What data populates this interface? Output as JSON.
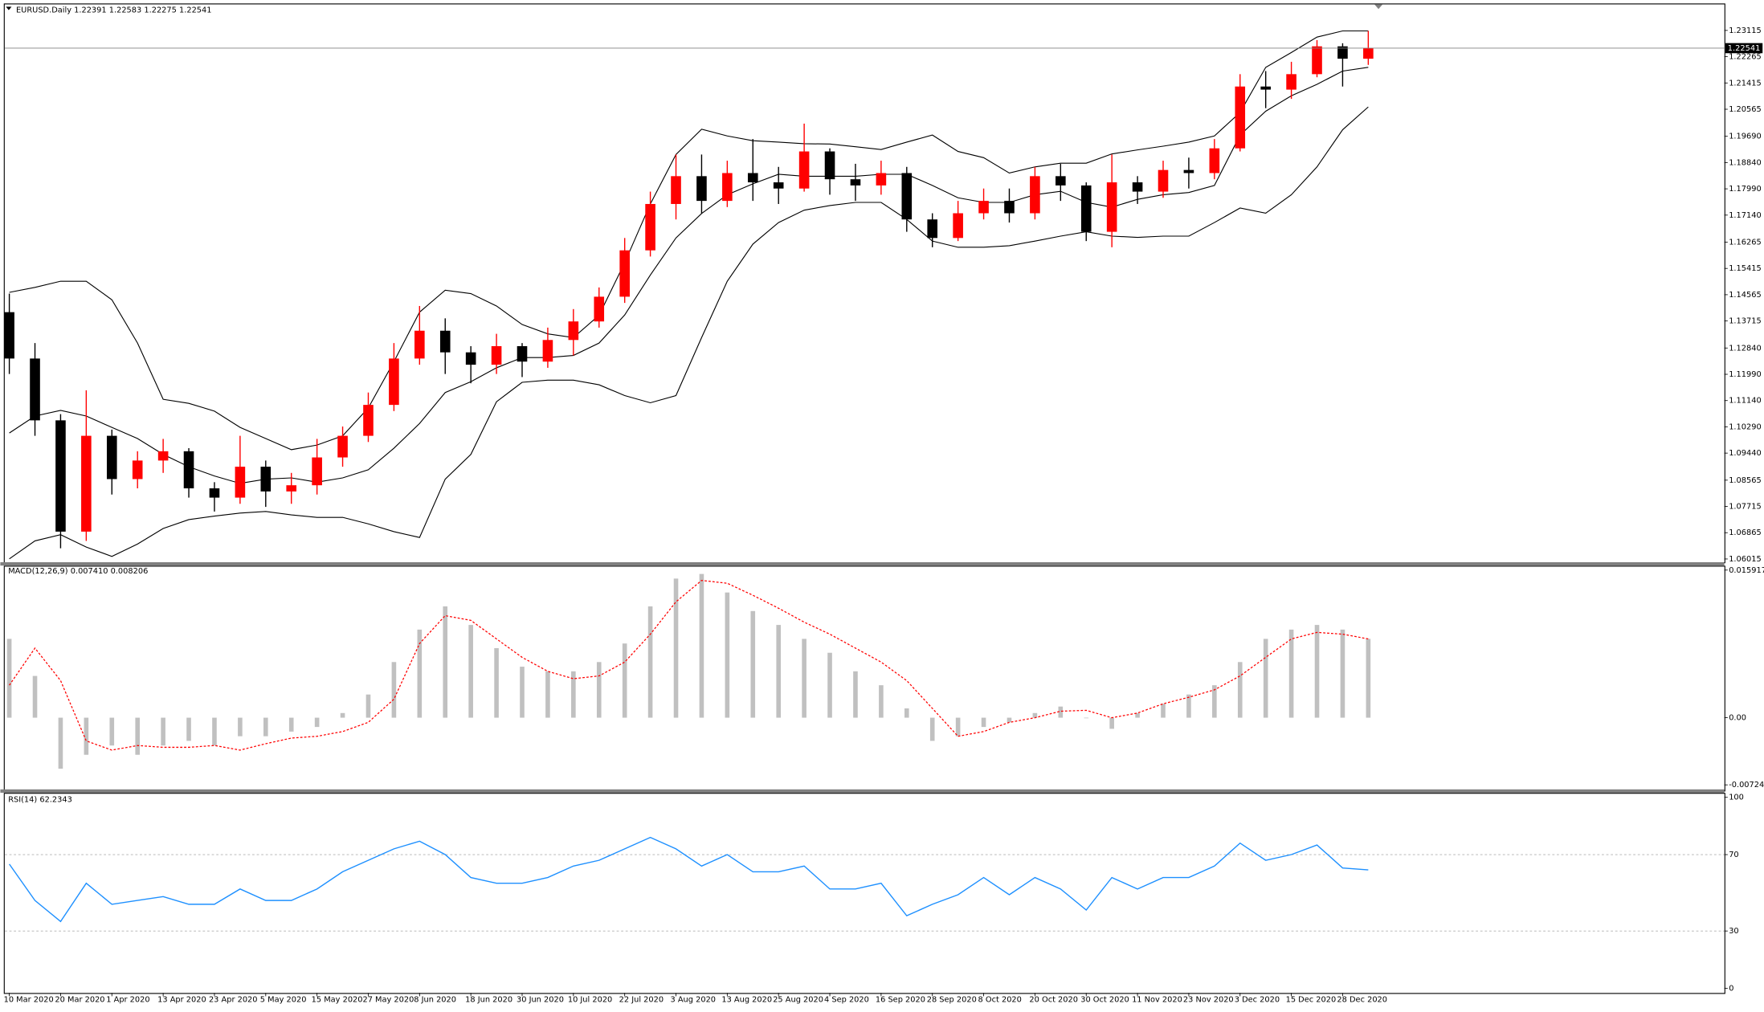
{
  "chart_data": [
    {
      "type": "candlestick",
      "title": "EURUSD.Daily  1.22391 1.22583 1.22275 1.22541",
      "categories": [
        "10 Mar 2020",
        null,
        "20 Mar 2020",
        null,
        "1 Apr 2020",
        null,
        "13 Apr 2020",
        null,
        "23 Apr 2020",
        null,
        "5 May 2020",
        null,
        "15 May 2020",
        null,
        "27 May 2020",
        null,
        "8 Jun 2020",
        null,
        "18 Jun 2020",
        null,
        "30 Jun 2020",
        null,
        "10 Jul 2020",
        null,
        "22 Jul 2020",
        null,
        "3 Aug 2020",
        null,
        "13 Aug 2020",
        null,
        "25 Aug 2020",
        null,
        "4 Sep 2020",
        null,
        "16 Sep 2020",
        null,
        "28 Sep 2020",
        null,
        "8 Oct 2020",
        null,
        "20 Oct 2020",
        null,
        "30 Oct 2020",
        null,
        "11 Nov 2020",
        null,
        "23 Nov 2020",
        null,
        "3 Dec 2020",
        null,
        "15 Dec 2020",
        null,
        "28 Dec 2020",
        null
      ],
      "open": [
        1.14,
        1.125,
        1.105,
        1.069,
        1.1,
        1.086,
        1.092,
        1.095,
        1.083,
        1.08,
        1.09,
        1.082,
        1.084,
        1.093,
        1.1,
        1.11,
        1.125,
        1.134,
        1.127,
        1.123,
        1.129,
        1.124,
        1.131,
        1.137,
        1.145,
        1.16,
        1.175,
        1.184,
        1.176,
        1.185,
        1.182,
        1.18,
        1.192,
        1.183,
        1.181,
        1.185,
        1.17,
        1.164,
        1.172,
        1.176,
        1.172,
        1.184,
        1.181,
        1.166,
        1.182,
        1.179,
        1.186,
        1.185,
        1.193,
        1.213,
        1.212,
        1.217,
        1.226,
        1.222
      ],
      "high": [
        1.146,
        1.13,
        1.107,
        1.1147,
        1.102,
        1.095,
        1.099,
        1.096,
        1.085,
        1.1,
        1.092,
        1.088,
        1.099,
        1.103,
        1.114,
        1.13,
        1.142,
        1.138,
        1.129,
        1.133,
        1.13,
        1.135,
        1.141,
        1.148,
        1.164,
        1.179,
        1.191,
        1.191,
        1.189,
        1.196,
        1.187,
        1.201,
        1.193,
        1.188,
        1.189,
        1.187,
        1.172,
        1.176,
        1.18,
        1.18,
        1.187,
        1.188,
        1.182,
        1.191,
        1.184,
        1.189,
        1.19,
        1.196,
        1.217,
        1.218,
        1.221,
        1.228,
        1.227,
        1.231
      ],
      "low": [
        1.12,
        1.1,
        1.0636,
        1.066,
        1.081,
        1.083,
        1.088,
        1.08,
        1.0755,
        1.078,
        1.077,
        1.078,
        1.081,
        1.09,
        1.098,
        1.108,
        1.123,
        1.12,
        1.117,
        1.12,
        1.119,
        1.122,
        1.126,
        1.135,
        1.143,
        1.158,
        1.17,
        1.172,
        1.174,
        1.176,
        1.175,
        1.179,
        1.178,
        1.176,
        1.178,
        1.166,
        1.161,
        1.163,
        1.17,
        1.169,
        1.17,
        1.176,
        1.163,
        1.161,
        1.175,
        1.177,
        1.18,
        1.183,
        1.192,
        1.206,
        1.209,
        1.216,
        1.213,
        1.22
      ],
      "close": [
        1.125,
        1.105,
        1.069,
        1.1,
        1.086,
        1.092,
        1.095,
        1.083,
        1.08,
        1.09,
        1.082,
        1.084,
        1.093,
        1.1,
        1.11,
        1.125,
        1.134,
        1.127,
        1.123,
        1.129,
        1.124,
        1.131,
        1.137,
        1.145,
        1.16,
        1.175,
        1.184,
        1.176,
        1.185,
        1.182,
        1.18,
        1.192,
        1.183,
        1.181,
        1.185,
        1.17,
        1.164,
        1.172,
        1.176,
        1.172,
        1.184,
        1.181,
        1.166,
        1.182,
        1.179,
        1.186,
        1.185,
        1.193,
        1.213,
        1.212,
        1.217,
        1.226,
        1.222,
        1.2254
      ],
      "up_color": "#ff0000",
      "down_color": "#000000",
      "series": [
        {
          "color": "#000000",
          "values": [
            1.1464,
            1.148,
            1.15,
            1.15,
            1.144,
            1.13,
            1.1118,
            1.1105,
            1.108,
            1.1027,
            1.0991,
            1.0955,
            1.097,
            1.1,
            1.109,
            1.124,
            1.14,
            1.1471,
            1.146,
            1.142,
            1.136,
            1.133,
            1.1318,
            1.139,
            1.156,
            1.175,
            1.191,
            1.1992,
            1.197,
            1.1955,
            1.195,
            1.1945,
            1.1944,
            1.1935,
            1.1926,
            1.195,
            1.1973,
            1.192,
            1.19,
            1.185,
            1.187,
            1.1882,
            1.1882,
            1.1912,
            1.1925,
            1.1937,
            1.195,
            1.197,
            1.2046,
            1.2192,
            1.224,
            1.229,
            1.231,
            1.231
          ]
        },
        {
          "color": "#000000",
          "values": [
            1.1009,
            1.1064,
            1.1082,
            1.1064,
            1.1027,
            1.0991,
            1.094,
            1.09,
            1.087,
            1.0846,
            1.086,
            1.0864,
            1.085,
            1.0864,
            1.089,
            1.096,
            1.104,
            1.114,
            1.1175,
            1.122,
            1.1253,
            1.1253,
            1.126,
            1.13,
            1.1391,
            1.152,
            1.164,
            1.1719,
            1.178,
            1.1815,
            1.1846,
            1.184,
            1.184,
            1.184,
            1.1846,
            1.1846,
            1.181,
            1.177,
            1.1755,
            1.1755,
            1.178,
            1.1791,
            1.1755,
            1.174,
            1.1765,
            1.178,
            1.1787,
            1.181,
            1.1973,
            1.205,
            1.21,
            1.2137,
            1.218,
            1.2192
          ]
        },
        {
          "color": "#000000",
          "values": [
            1.0602,
            1.066,
            1.068,
            1.064,
            1.061,
            1.065,
            1.07,
            1.0729,
            1.074,
            1.075,
            1.0755,
            1.0744,
            1.0736,
            1.0736,
            1.0715,
            1.069,
            1.0671,
            1.086,
            1.094,
            1.111,
            1.1173,
            1.118,
            1.118,
            1.1165,
            1.113,
            1.1107,
            1.113,
            1.1318,
            1.15,
            1.162,
            1.169,
            1.173,
            1.1745,
            1.1755,
            1.1755,
            1.17,
            1.163,
            1.161,
            1.161,
            1.1615,
            1.163,
            1.1646,
            1.166,
            1.1646,
            1.1642,
            1.1646,
            1.1646,
            1.169,
            1.1737,
            1.172,
            1.178,
            1.187,
            1.199,
            1.2064
          ]
        }
      ],
      "last_price": 1.22541,
      "ylim": [
        1.0591,
        1.2399
      ],
      "yticks": [
        1.23115,
        1.22265,
        1.21415,
        1.20565,
        {
          "value": 1.1969,
          "label": "1.19690"
        },
        {
          "value": 1.1884,
          "label": "1.18840"
        },
        {
          "value": 1.1799,
          "label": "1.17990"
        },
        {
          "value": 1.1714,
          "label": "1.17140"
        },
        1.16265,
        1.15415,
        1.14565,
        1.13715,
        {
          "value": 1.1284,
          "label": "1.12840"
        },
        {
          "value": 1.1199,
          "label": "1.11990"
        },
        {
          "value": 1.1114,
          "label": "1.11140"
        },
        {
          "value": 1.1029,
          "label": "1.10290"
        },
        {
          "value": 1.0944,
          "label": "1.09440"
        },
        1.08565,
        1.07715,
        1.06865,
        1.06015
      ]
    },
    {
      "type": "macd",
      "title": "MACD(12,26,9) 0.007410 0.008206",
      "series": [
        {
          "color": "#c0c0c0",
          "values": [
            0.0085,
            0.0045,
            -0.0055,
            -0.004,
            -0.003,
            -0.004,
            -0.003,
            -0.0025,
            -0.003,
            -0.002,
            -0.002,
            -0.0015,
            -0.001,
            0.0005,
            0.0025,
            0.006,
            0.0095,
            0.012,
            0.01,
            0.0075,
            0.0055,
            0.005,
            0.005,
            0.006,
            0.008,
            0.012,
            0.015,
            0.0155,
            0.0135,
            0.0115,
            0.01,
            0.0085,
            0.007,
            0.005,
            0.0035,
            0.001,
            -0.0025,
            -0.002,
            -0.001,
            -0.0005,
            0.0005,
            0.0012,
            0.0,
            -0.0012,
            0.0005,
            0.0015,
            0.0025,
            0.0035,
            0.006,
            0.0085,
            0.0095,
            0.01,
            0.0095,
            0.0085
          ]
        },
        {
          "color": "#ff0000",
          "values": [
            0.0035,
            0.0075,
            0.004,
            -0.0025,
            -0.0035,
            -0.003,
            -0.0032,
            -0.0032,
            -0.003,
            -0.0035,
            -0.0028,
            -0.0022,
            -0.002,
            -0.0015,
            -0.0005,
            0.002,
            0.008,
            0.011,
            0.0105,
            0.0085,
            0.0065,
            0.005,
            0.0042,
            0.0045,
            0.006,
            0.009,
            0.0125,
            0.0148,
            0.0145,
            0.0132,
            0.0118,
            0.0103,
            0.009,
            0.0075,
            0.006,
            0.004,
            0.001,
            -0.002,
            -0.0015,
            -0.0005,
            0.0,
            0.0007,
            0.0008,
            0.0,
            0.0005,
            0.0015,
            0.0022,
            0.003,
            0.0045,
            0.0065,
            0.0085,
            0.0092,
            0.009,
            0.0085
          ]
        }
      ],
      "ylim": [
        -0.00785,
        0.0164
      ],
      "yticks": [
        0.015917,
        {
          "value": 0,
          "label": "0.00"
        },
        -0.007244
      ]
    },
    {
      "type": "line",
      "title": "RSI(14) 62.2343",
      "series": [
        {
          "color": "#1e90ff",
          "values": [
            65,
            46,
            35,
            55,
            44,
            46,
            48,
            44,
            44,
            52,
            46,
            46,
            52,
            61,
            67,
            73,
            77,
            70,
            58,
            55,
            55,
            58,
            64,
            67,
            73,
            79,
            73,
            64,
            70,
            61,
            61,
            64,
            52,
            52,
            55,
            38,
            44,
            49,
            58,
            49,
            58,
            52,
            41,
            58,
            52,
            58,
            58,
            64,
            76,
            67,
            70,
            75,
            63,
            62
          ]
        }
      ],
      "levels": [
        30,
        70
      ],
      "ylim": [
        -2.4,
        102.4
      ],
      "yticks": [
        100,
        70,
        30,
        0
      ]
    }
  ]
}
